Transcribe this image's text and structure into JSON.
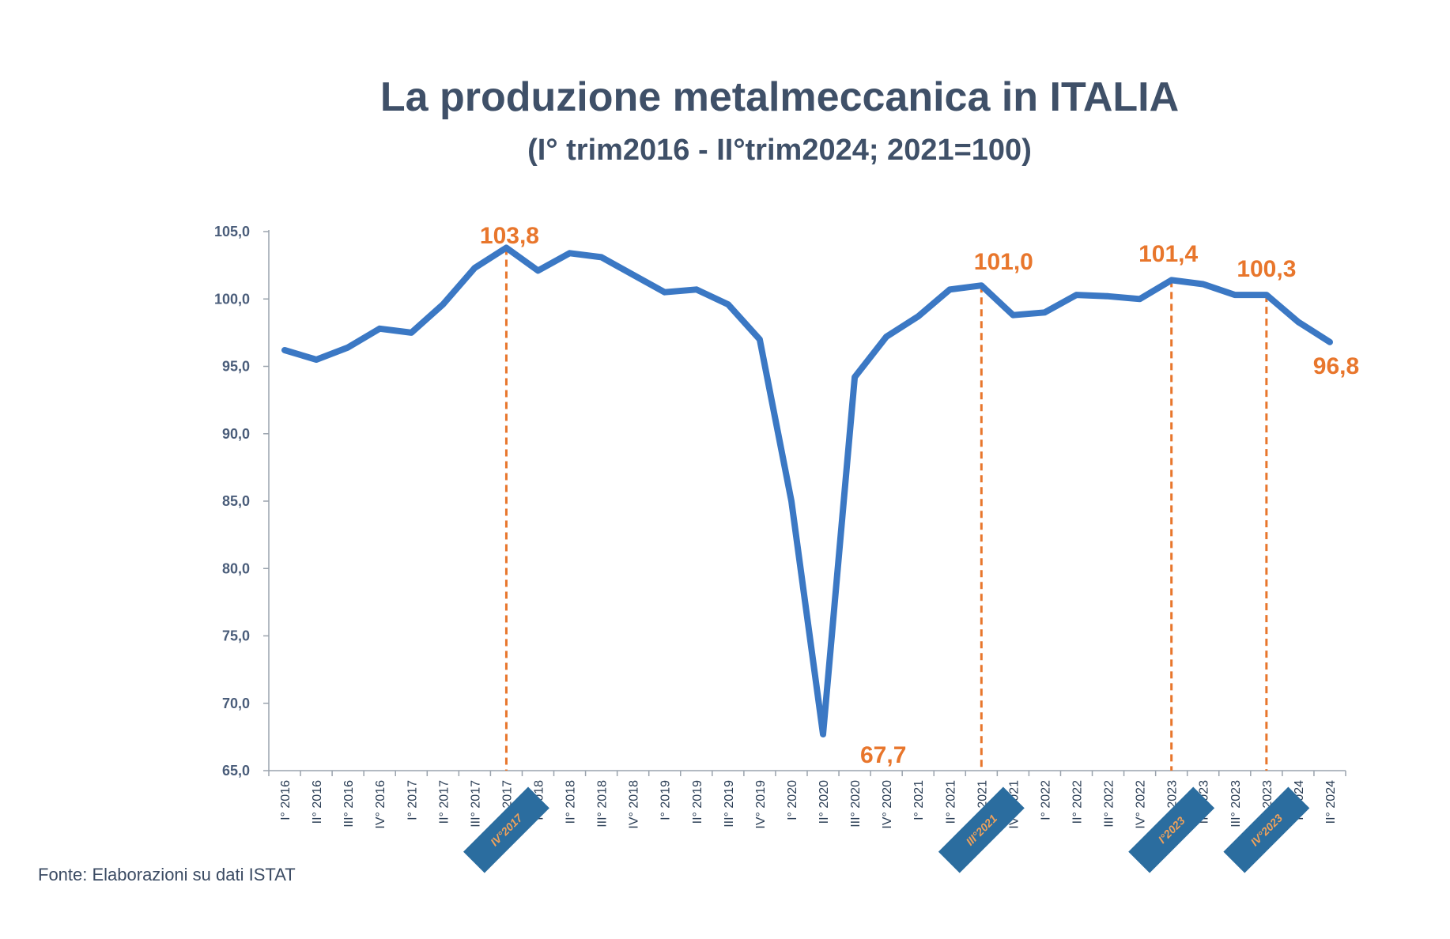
{
  "colors": {
    "title": "#3f5068",
    "line": "#3b78c4",
    "annotation": "#e8762c",
    "axis": "#9aa3ad",
    "badge_bg": "#2b6d9f",
    "badge_text": "#f0a15a"
  },
  "chart_data": {
    "type": "line",
    "title": "La produzione metalmeccanica in ITALIA",
    "subtitle": "(I° trim2016 - II°trim2024;  2021=100)",
    "source": "Fonte: Elaborazioni su dati ISTAT",
    "ylim": [
      65,
      105
    ],
    "yticks": [
      "105,0",
      "100,0",
      "95,0",
      "90,0",
      "85,0",
      "80,0",
      "75,0",
      "70,0",
      "65,0"
    ],
    "ytick_values": [
      105,
      100,
      95,
      90,
      85,
      80,
      75,
      70,
      65
    ],
    "grid": false,
    "legend": "none",
    "categories": [
      "I° 2016",
      "II° 2016",
      "III° 2016",
      "IV° 2016",
      "I° 2017",
      "II° 2017",
      "III° 2017",
      "IV° 2017",
      "I° 2018",
      "II° 2018",
      "III° 2018",
      "IV° 2018",
      "I° 2019",
      "II° 2019",
      "III° 2019",
      "IV° 2019",
      "I° 2020",
      "II° 2020",
      "III° 2020",
      "IV° 2020",
      "I° 2021",
      "II° 2021",
      "III° 2021",
      "IV° 2021",
      "I° 2022",
      "II° 2022",
      "III° 2022",
      "IV° 2022",
      "I° 2023",
      "II° 2023",
      "III° 2023",
      "IV° 2023",
      "I° 2024",
      "II° 2024"
    ],
    "values": [
      96.2,
      95.5,
      96.4,
      97.8,
      97.5,
      99.6,
      102.3,
      103.8,
      102.1,
      103.4,
      103.1,
      101.8,
      100.5,
      100.7,
      99.6,
      97.0,
      85.0,
      67.7,
      94.2,
      97.2,
      98.7,
      100.7,
      101.0,
      98.8,
      99.0,
      100.3,
      100.2,
      100.0,
      101.4,
      101.1,
      100.3,
      100.3,
      98.3,
      96.8
    ],
    "annotations": [
      {
        "label": "103,8",
        "index": 7,
        "dashed": true
      },
      {
        "label": "67,7",
        "index": 17,
        "dashed": false
      },
      {
        "label": "101,0",
        "index": 22,
        "dashed": true
      },
      {
        "label": "101,4",
        "index": 28,
        "dashed": true
      },
      {
        "label": "100,3",
        "index": 31,
        "dashed": true
      },
      {
        "label": "96,8",
        "index": 33,
        "dashed": false
      }
    ],
    "badges": [
      {
        "label": "IV°2017",
        "index": 7
      },
      {
        "label": "III°2021",
        "index": 22
      },
      {
        "label": "I°2023",
        "index": 28
      },
      {
        "label": "IV°2023",
        "index": 31
      }
    ]
  }
}
